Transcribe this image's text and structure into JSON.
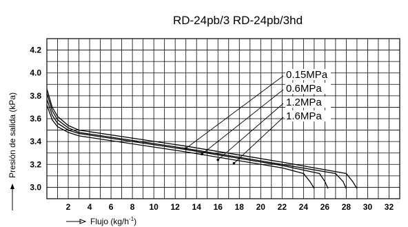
{
  "chart_data": {
    "type": "line",
    "title": "RD-24pb/3   RD-24pb/3hd",
    "xlabel": "Flujo (kg/h",
    "xlabel_sup": "-1",
    "xlabel_end": ")",
    "ylabel": "Presión de salida (kPa)",
    "xlim": [
      0,
      33
    ],
    "ylim": [
      2.9,
      4.3
    ],
    "x_ticks": [
      "2",
      "4",
      "6",
      "8",
      "10",
      "12",
      "14",
      "16",
      "18",
      "20",
      "22",
      "24",
      "26",
      "28",
      "30",
      "32"
    ],
    "y_ticks": [
      "3.0",
      "3.2",
      "3.4",
      "3.6",
      "3.8",
      "4.0",
      "4.2"
    ],
    "grid": true,
    "series": [
      {
        "name": "0.15MPa",
        "points": [
          [
            0,
            3.72
          ],
          [
            0.5,
            3.59
          ],
          [
            1,
            3.53
          ],
          [
            2,
            3.48
          ],
          [
            3,
            3.45
          ],
          [
            13,
            3.31
          ],
          [
            22,
            3.17
          ],
          [
            24,
            3.12
          ],
          [
            24.6,
            3.05
          ],
          [
            25,
            2.99
          ]
        ]
      },
      {
        "name": "0.6MPa",
        "points": [
          [
            0,
            3.77
          ],
          [
            0.5,
            3.63
          ],
          [
            1,
            3.56
          ],
          [
            2,
            3.5
          ],
          [
            3,
            3.47
          ],
          [
            13,
            3.33
          ],
          [
            22,
            3.19
          ],
          [
            25.5,
            3.12
          ],
          [
            26,
            3.05
          ],
          [
            26.3,
            2.99
          ]
        ]
      },
      {
        "name": "1.2MPa",
        "points": [
          [
            0,
            3.82
          ],
          [
            0.5,
            3.67
          ],
          [
            1,
            3.59
          ],
          [
            2,
            3.52
          ],
          [
            3,
            3.48
          ],
          [
            13,
            3.34
          ],
          [
            22,
            3.2
          ],
          [
            27,
            3.12
          ],
          [
            27.7,
            3.05
          ],
          [
            28,
            2.99
          ]
        ]
      },
      {
        "name": "1.6MPa",
        "points": [
          [
            0,
            3.86
          ],
          [
            0.5,
            3.7
          ],
          [
            1,
            3.62
          ],
          [
            2,
            3.54
          ],
          [
            3,
            3.5
          ],
          [
            13,
            3.36
          ],
          [
            22,
            3.22
          ],
          [
            28,
            3.12
          ],
          [
            28.6,
            3.05
          ],
          [
            29,
            2.99
          ]
        ]
      }
    ],
    "annotations": [
      {
        "text": "0.15MPa",
        "target": [
          13,
          3.34
        ]
      },
      {
        "text": "0.6MPa",
        "target": [
          14.5,
          3.29
        ]
      },
      {
        "text": "1.2MPa",
        "target": [
          16,
          3.24
        ]
      },
      {
        "text": "1.6MPa",
        "target": [
          17.5,
          3.21
        ]
      }
    ]
  }
}
